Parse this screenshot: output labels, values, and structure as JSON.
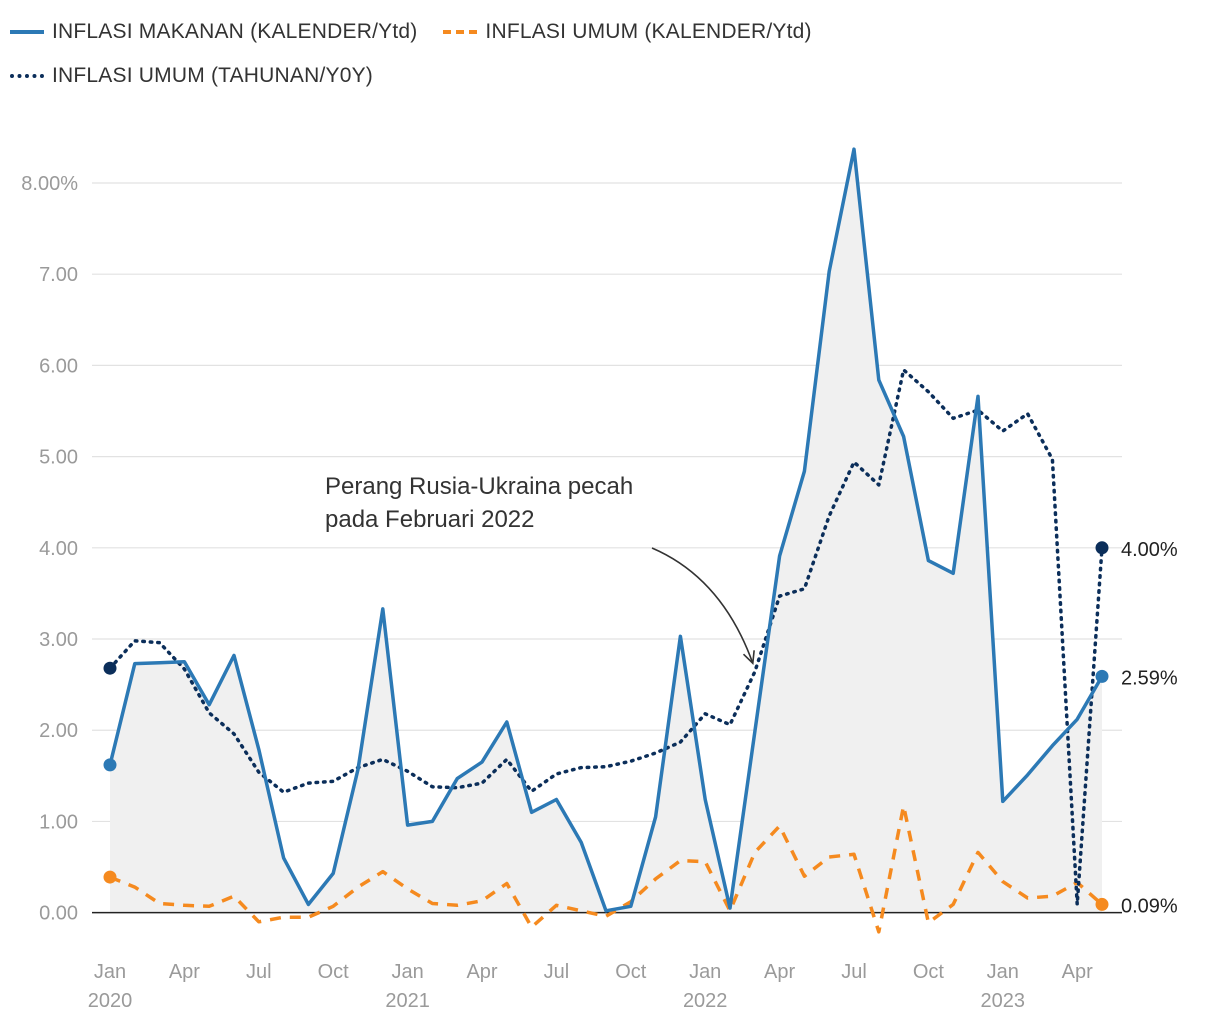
{
  "legend": {
    "rows": [
      [
        {
          "label": "INFLASI MAKANAN (KALENDER/Ytd)",
          "color": "#2c79b5",
          "style": "solid"
        },
        {
          "label": "INFLASI UMUM (KALENDER/Ytd)",
          "color": "#f58a1f",
          "style": "dashed"
        }
      ],
      [
        {
          "label": "INFLASI UMUM (TAHUNAN/Y0Y)",
          "color": "#0b2e5a",
          "style": "dotted"
        }
      ]
    ]
  },
  "annotation": {
    "lines": [
      "Perang Rusia-Ukraina pecah",
      "pada Februari 2022"
    ],
    "target_month": "2022-03",
    "target_value": 2.8
  },
  "chart_data": {
    "type": "line",
    "x": [
      "2020-01",
      "2020-02",
      "2020-03",
      "2020-04",
      "2020-05",
      "2020-06",
      "2020-07",
      "2020-08",
      "2020-09",
      "2020-10",
      "2020-11",
      "2020-12",
      "2021-01",
      "2021-02",
      "2021-03",
      "2021-04",
      "2021-05",
      "2021-06",
      "2021-07",
      "2021-08",
      "2021-09",
      "2021-10",
      "2021-11",
      "2021-12",
      "2022-01",
      "2022-02",
      "2022-03",
      "2022-04",
      "2022-05",
      "2022-06",
      "2022-07",
      "2022-08",
      "2022-09",
      "2022-10",
      "2022-11",
      "2022-12",
      "2023-01",
      "2023-02",
      "2023-03",
      "2023-04",
      "2023-05"
    ],
    "series": [
      {
        "name": "INFLASI MAKANAN (KALENDER/Ytd)",
        "color": "#2c79b5",
        "style": "solid",
        "fill": true,
        "values": [
          1.62,
          2.73,
          2.74,
          2.75,
          2.28,
          2.82,
          1.79,
          0.6,
          0.09,
          0.43,
          1.57,
          3.33,
          0.96,
          1.0,
          1.47,
          1.65,
          2.09,
          1.1,
          1.24,
          0.77,
          0.02,
          0.07,
          1.05,
          3.03,
          1.24,
          0.05,
          1.98,
          3.91,
          4.84,
          7.03,
          8.37,
          5.84,
          5.22,
          3.86,
          3.72,
          5.66,
          1.22,
          1.51,
          1.83,
          2.12,
          2.59
        ]
      },
      {
        "name": "INFLASI UMUM (KALENDER/Ytd)",
        "color": "#f58a1f",
        "style": "dashed",
        "values": [
          0.39,
          0.28,
          0.1,
          0.08,
          0.07,
          0.18,
          -0.1,
          -0.05,
          -0.05,
          0.07,
          0.28,
          0.45,
          0.26,
          0.1,
          0.08,
          0.13,
          0.32,
          -0.16,
          0.08,
          0.02,
          -0.04,
          0.12,
          0.37,
          0.57,
          0.56,
          0.02,
          0.66,
          0.95,
          0.4,
          0.61,
          0.64,
          -0.21,
          1.17,
          -0.11,
          0.09,
          0.66,
          0.34,
          0.16,
          0.18,
          0.33,
          0.09
        ]
      },
      {
        "name": "INFLASI UMUM (TAHUNAN/Y0Y)",
        "color": "#0b2e5a",
        "style": "dotted",
        "values": [
          2.68,
          2.98,
          2.96,
          2.67,
          2.19,
          1.96,
          1.54,
          1.32,
          1.42,
          1.44,
          1.59,
          1.68,
          1.55,
          1.38,
          1.37,
          1.42,
          1.68,
          1.33,
          1.52,
          1.59,
          1.6,
          1.66,
          1.75,
          1.87,
          2.18,
          2.06,
          2.64,
          3.47,
          3.55,
          4.35,
          4.94,
          4.69,
          5.95,
          5.71,
          5.42,
          5.51,
          5.28,
          5.47,
          4.97,
          0.09,
          4.0
        ]
      }
    ],
    "y_ticks": [
      "8.00%",
      "7.00",
      "6.00",
      "5.00",
      "4.00",
      "3.00",
      "2.00",
      "1.00",
      "0.00"
    ],
    "y_tick_values": [
      8,
      7,
      6,
      5,
      4,
      3,
      2,
      1,
      0
    ],
    "ylim": [
      -0.3,
      8.8
    ],
    "x_ticks": [
      {
        "month": "2020-01",
        "label": "Jan",
        "year": "2020"
      },
      {
        "month": "2020-04",
        "label": "Apr"
      },
      {
        "month": "2020-07",
        "label": "Jul"
      },
      {
        "month": "2020-10",
        "label": "Oct"
      },
      {
        "month": "2021-01",
        "label": "Jan",
        "year": "2021"
      },
      {
        "month": "2021-04",
        "label": "Apr"
      },
      {
        "month": "2021-07",
        "label": "Jul"
      },
      {
        "month": "2021-10",
        "label": "Oct"
      },
      {
        "month": "2022-01",
        "label": "Jan",
        "year": "2022"
      },
      {
        "month": "2022-04",
        "label": "Apr"
      },
      {
        "month": "2022-07",
        "label": "Jul"
      },
      {
        "month": "2022-10",
        "label": "Oct"
      },
      {
        "month": "2023-01",
        "label": "Jan",
        "year": "2023"
      },
      {
        "month": "2023-04",
        "label": "Apr"
      }
    ],
    "end_labels": [
      {
        "series": 2,
        "text": "4.00%"
      },
      {
        "series": 0,
        "text": "2.59%"
      },
      {
        "series": 1,
        "text": "0.09%"
      }
    ],
    "grid": true
  }
}
